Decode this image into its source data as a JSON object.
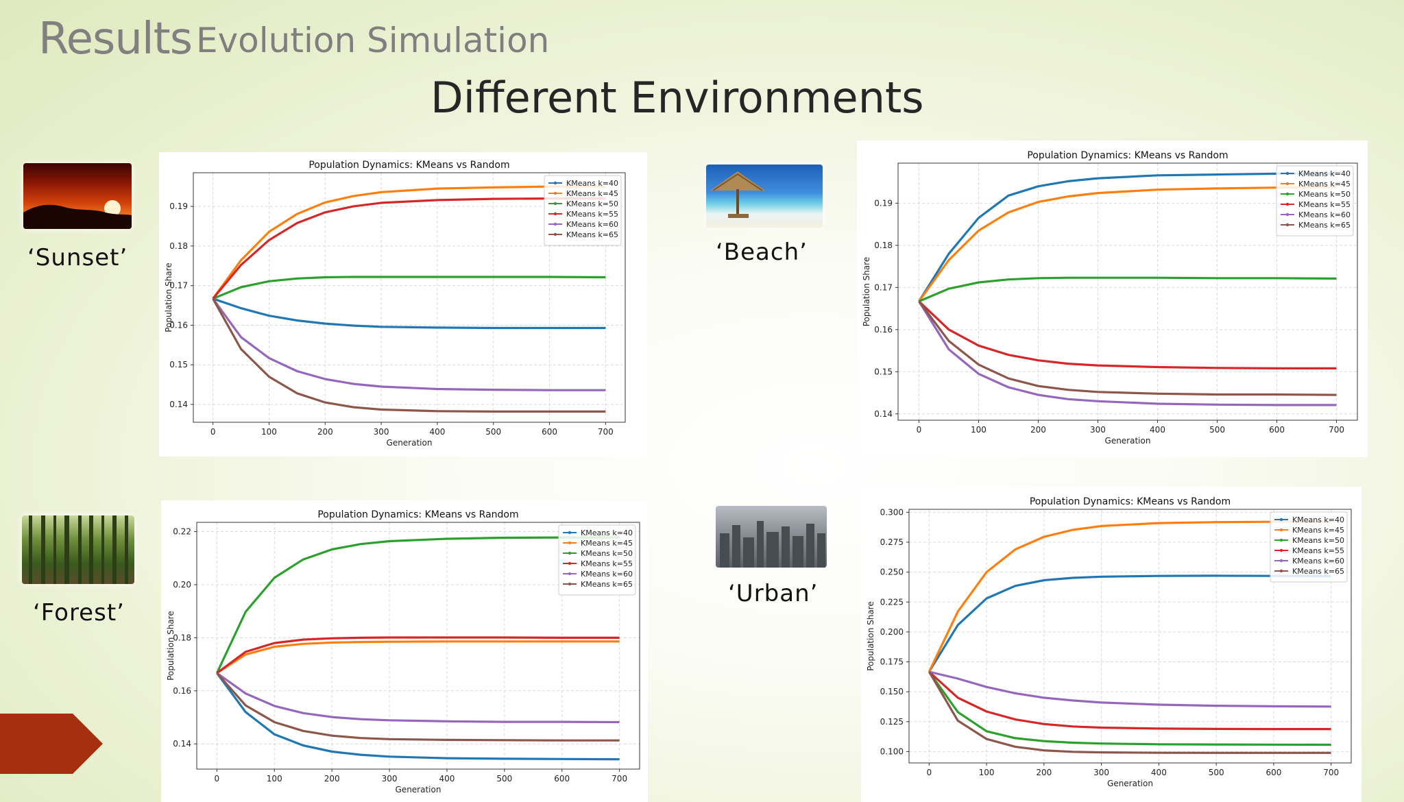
{
  "header": {
    "title": "Results",
    "subtitle": "Evolution Simulation",
    "heading": "Different Environments"
  },
  "environments": [
    {
      "label": "‘Sunset’"
    },
    {
      "label": "‘Beach’"
    },
    {
      "label": "‘Forest’"
    },
    {
      "label": "‘Urban’"
    }
  ],
  "colors": {
    "accent_arrow": "#a5300f"
  },
  "chart_data": [
    {
      "type": "line",
      "environment": "Sunset",
      "title": "Population Dynamics: KMeans vs Random",
      "xlabel": "Generation",
      "ylabel": "Population Share",
      "xlim": [
        -35,
        735
      ],
      "ylim": [
        0.1355,
        0.1985
      ],
      "xticks": [
        0,
        100,
        200,
        300,
        400,
        500,
        600,
        700
      ],
      "yticks": [
        0.14,
        0.15,
        0.16,
        0.17,
        0.18,
        0.19
      ],
      "ytick_labels": [
        "0.14",
        "0.15",
        "0.16",
        "0.17",
        "0.18",
        "0.19"
      ],
      "grid": true,
      "legend": "top-right",
      "x": [
        0,
        50,
        100,
        150,
        200,
        250,
        300,
        400,
        500,
        600,
        700
      ],
      "series": [
        {
          "name": "KMeans k=40",
          "color": "#1f77b4",
          "values": [
            0.1667,
            0.1643,
            0.1624,
            0.1612,
            0.1604,
            0.1599,
            0.1596,
            0.1594,
            0.1593,
            0.1593,
            0.1593
          ]
        },
        {
          "name": "KMeans k=45",
          "color": "#ff7f0e",
          "values": [
            0.1667,
            0.1764,
            0.1836,
            0.1881,
            0.191,
            0.1926,
            0.1936,
            0.1945,
            0.1948,
            0.195,
            0.195
          ]
        },
        {
          "name": "KMeans k=50",
          "color": "#2ca02c",
          "values": [
            0.1667,
            0.1696,
            0.1711,
            0.1718,
            0.1721,
            0.1722,
            0.1722,
            0.1722,
            0.1722,
            0.1722,
            0.1721
          ]
        },
        {
          "name": "KMeans k=55",
          "color": "#d62728",
          "values": [
            0.1667,
            0.1752,
            0.1815,
            0.1858,
            0.1885,
            0.19,
            0.1909,
            0.1916,
            0.1919,
            0.192,
            0.192
          ]
        },
        {
          "name": "KMeans k=60",
          "color": "#9467bd",
          "values": [
            0.1667,
            0.157,
            0.1517,
            0.1484,
            0.1464,
            0.1452,
            0.1445,
            0.1439,
            0.1437,
            0.1436,
            0.1436
          ]
        },
        {
          "name": "KMeans k=65",
          "color": "#8c564b",
          "values": [
            0.1667,
            0.154,
            0.147,
            0.1428,
            0.1405,
            0.1393,
            0.1387,
            0.1383,
            0.1382,
            0.1382,
            0.1382
          ]
        }
      ]
    },
    {
      "type": "line",
      "environment": "Beach",
      "title": "Population Dynamics: KMeans vs Random",
      "xlabel": "Generation",
      "ylabel": "Population Share",
      "xlim": [
        -35,
        735
      ],
      "ylim": [
        0.1385,
        0.1995
      ],
      "xticks": [
        0,
        100,
        200,
        300,
        400,
        500,
        600,
        700
      ],
      "yticks": [
        0.14,
        0.15,
        0.16,
        0.17,
        0.18,
        0.19
      ],
      "ytick_labels": [
        "0.14",
        "0.15",
        "0.16",
        "0.17",
        "0.18",
        "0.19"
      ],
      "grid": true,
      "legend": "top-right",
      "x": [
        0,
        50,
        100,
        150,
        200,
        250,
        300,
        400,
        500,
        600,
        700
      ],
      "series": [
        {
          "name": "KMeans k=40",
          "color": "#1f77b4",
          "values": [
            0.1667,
            0.178,
            0.1865,
            0.1918,
            0.194,
            0.1952,
            0.1959,
            0.1966,
            0.1968,
            0.197,
            0.197
          ]
        },
        {
          "name": "KMeans k=45",
          "color": "#ff7f0e",
          "values": [
            0.1667,
            0.1765,
            0.1835,
            0.1878,
            0.1903,
            0.1916,
            0.1924,
            0.1932,
            0.1935,
            0.1937,
            0.1938
          ]
        },
        {
          "name": "KMeans k=50",
          "color": "#2ca02c",
          "values": [
            0.1667,
            0.1697,
            0.1712,
            0.1719,
            0.1722,
            0.1723,
            0.1723,
            0.1723,
            0.1722,
            0.1722,
            0.1721
          ]
        },
        {
          "name": "KMeans k=55",
          "color": "#d62728",
          "values": [
            0.1667,
            0.16,
            0.1562,
            0.154,
            0.1527,
            0.1519,
            0.1515,
            0.1511,
            0.1509,
            0.1508,
            0.1508
          ]
        },
        {
          "name": "KMeans k=60",
          "color": "#9467bd",
          "values": [
            0.1667,
            0.1553,
            0.1495,
            0.1463,
            0.1445,
            0.1435,
            0.143,
            0.1424,
            0.1422,
            0.1421,
            0.1421
          ]
        },
        {
          "name": "KMeans k=65",
          "color": "#8c564b",
          "values": [
            0.1667,
            0.1573,
            0.1517,
            0.1484,
            0.1466,
            0.1457,
            0.1452,
            0.1448,
            0.1446,
            0.1446,
            0.1445
          ]
        }
      ]
    },
    {
      "type": "line",
      "environment": "Forest",
      "title": "Population Dynamics: KMeans vs Random",
      "xlabel": "Generation",
      "ylabel": "Population Share",
      "xlim": [
        -35,
        735
      ],
      "ylim": [
        0.1305,
        0.2235
      ],
      "xticks": [
        0,
        100,
        200,
        300,
        400,
        500,
        600,
        700
      ],
      "yticks": [
        0.14,
        0.16,
        0.18,
        0.2,
        0.22
      ],
      "ytick_labels": [
        "0.14",
        "0.16",
        "0.18",
        "0.20",
        "0.22"
      ],
      "grid": true,
      "legend": "top-right",
      "x": [
        0,
        50,
        100,
        150,
        200,
        250,
        300,
        400,
        500,
        600,
        700
      ],
      "series": [
        {
          "name": "KMeans k=40",
          "color": "#1f77b4",
          "values": [
            0.1667,
            0.152,
            0.1436,
            0.1394,
            0.1371,
            0.1359,
            0.1352,
            0.1346,
            0.1344,
            0.1343,
            0.1342
          ]
        },
        {
          "name": "KMeans k=45",
          "color": "#ff7f0e",
          "values": [
            0.1667,
            0.1737,
            0.1766,
            0.1777,
            0.1782,
            0.1784,
            0.1785,
            0.1786,
            0.1786,
            0.1786,
            0.1786
          ]
        },
        {
          "name": "KMeans k=50",
          "color": "#2ca02c",
          "values": [
            0.1667,
            0.1898,
            0.2026,
            0.2095,
            0.2133,
            0.2153,
            0.2164,
            0.2173,
            0.2177,
            0.2178,
            0.2178
          ]
        },
        {
          "name": "KMeans k=55",
          "color": "#d62728",
          "values": [
            0.1667,
            0.1747,
            0.178,
            0.1793,
            0.1798,
            0.18,
            0.1801,
            0.1801,
            0.1801,
            0.18,
            0.18
          ]
        },
        {
          "name": "KMeans k=60",
          "color": "#9467bd",
          "values": [
            0.1667,
            0.159,
            0.1543,
            0.1516,
            0.1501,
            0.1493,
            0.1489,
            0.1485,
            0.1483,
            0.1483,
            0.1482
          ]
        },
        {
          "name": "KMeans k=65",
          "color": "#8c564b",
          "values": [
            0.1667,
            0.1545,
            0.1482,
            0.1449,
            0.1431,
            0.1422,
            0.1418,
            0.1415,
            0.1414,
            0.1413,
            0.1413
          ]
        }
      ]
    },
    {
      "type": "line",
      "environment": "Urban",
      "title": "Population Dynamics: KMeans vs Random",
      "xlabel": "Generation",
      "ylabel": "Population Share",
      "xlim": [
        -35,
        735
      ],
      "ylim": [
        0.0905,
        0.3025
      ],
      "xticks": [
        0,
        100,
        200,
        300,
        400,
        500,
        600,
        700
      ],
      "yticks": [
        0.1,
        0.125,
        0.15,
        0.175,
        0.2,
        0.225,
        0.25,
        0.275,
        0.3
      ],
      "ytick_labels": [
        "0.100",
        "0.125",
        "0.150",
        "0.175",
        "0.200",
        "0.225",
        "0.250",
        "0.275",
        "0.300"
      ],
      "grid": true,
      "legend": "top-right",
      "x": [
        0,
        50,
        100,
        150,
        200,
        250,
        300,
        400,
        500,
        600,
        700
      ],
      "series": [
        {
          "name": "KMeans k=40",
          "color": "#1f77b4",
          "values": [
            0.1667,
            0.2058,
            0.228,
            0.2385,
            0.2432,
            0.2452,
            0.2462,
            0.2468,
            0.247,
            0.2468,
            0.2465
          ]
        },
        {
          "name": "KMeans k=45",
          "color": "#ff7f0e",
          "values": [
            0.1667,
            0.217,
            0.25,
            0.269,
            0.2795,
            0.2853,
            0.2885,
            0.291,
            0.2918,
            0.2921,
            0.2923
          ]
        },
        {
          "name": "KMeans k=50",
          "color": "#2ca02c",
          "values": [
            0.1667,
            0.133,
            0.117,
            0.1112,
            0.1087,
            0.1074,
            0.1067,
            0.1061,
            0.1059,
            0.1058,
            0.1057
          ]
        },
        {
          "name": "KMeans k=55",
          "color": "#d62728",
          "values": [
            0.1667,
            0.145,
            0.1335,
            0.1268,
            0.123,
            0.121,
            0.12,
            0.1192,
            0.1189,
            0.1188,
            0.1188
          ]
        },
        {
          "name": "KMeans k=60",
          "color": "#9467bd",
          "values": [
            0.1667,
            0.161,
            0.154,
            0.1487,
            0.145,
            0.1427,
            0.141,
            0.1392,
            0.1383,
            0.1378,
            0.1376
          ]
        },
        {
          "name": "KMeans k=65",
          "color": "#8c564b",
          "values": [
            0.1667,
            0.1258,
            0.1105,
            0.104,
            0.101,
            0.0998,
            0.0993,
            0.099,
            0.0989,
            0.0989,
            0.0989
          ]
        }
      ]
    }
  ]
}
